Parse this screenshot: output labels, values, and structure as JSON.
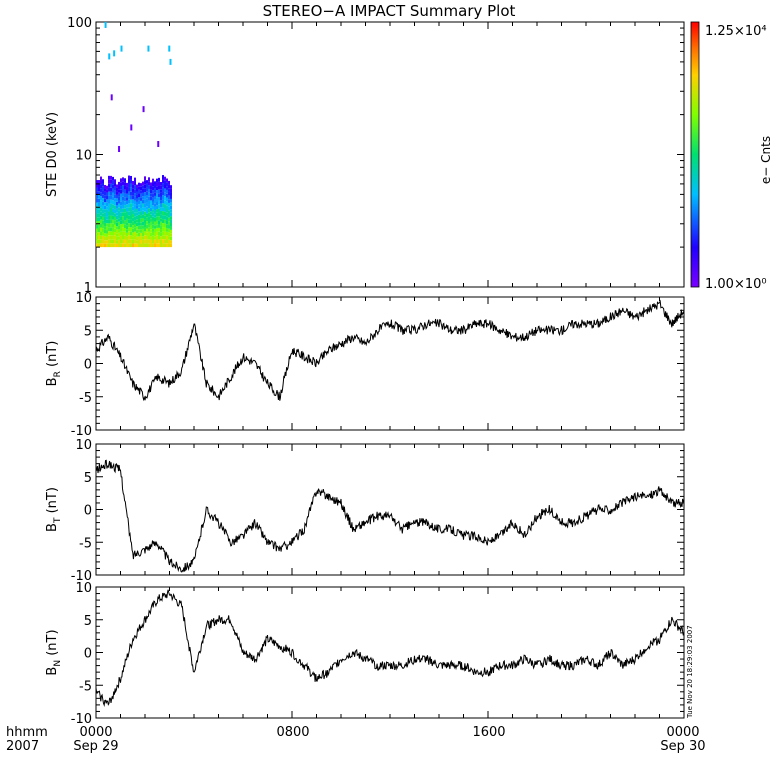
{
  "title": "STEREO−A IMPACT Summary Plot",
  "footer": {
    "left_top": "hhmm",
    "left_bottom": "2007",
    "x_ticks": [
      "0000",
      "0800",
      "1600",
      "0000"
    ],
    "x_dates": [
      "Sep 29",
      "",
      "",
      "Sep 30"
    ]
  },
  "timestamp": "Tue Nov 20 18:29:03 2007",
  "colorbar": {
    "label": "e− Cnts",
    "max_label": "1.25×10⁴",
    "min_label": "1.00×10⁰",
    "min": 1,
    "max": 12500
  },
  "chart_data": [
    {
      "type": "heatmap",
      "ylabel": "STE D0 (keV)",
      "yscale": "log",
      "ylim": [
        1,
        100
      ],
      "yticks": [
        "1",
        "10",
        "100"
      ],
      "xlim_hours": [
        0,
        24
      ],
      "data_extent_hours": [
        0,
        3.1
      ],
      "energy_band_keV": [
        2,
        7
      ],
      "sparse_points": [
        {
          "t": 0.35,
          "e": 95
        },
        {
          "t": 0.5,
          "e": 55
        },
        {
          "t": 0.7,
          "e": 58
        },
        {
          "t": 1.0,
          "e": 63
        },
        {
          "t": 2.1,
          "e": 63
        },
        {
          "t": 2.95,
          "e": 63
        },
        {
          "t": 3.0,
          "e": 50
        },
        {
          "t": 0.6,
          "e": 27
        },
        {
          "t": 1.9,
          "e": 22
        },
        {
          "t": 1.4,
          "e": 16
        },
        {
          "t": 2.5,
          "e": 12
        },
        {
          "t": 0.9,
          "e": 11
        }
      ]
    },
    {
      "type": "line",
      "ylabel": "B",
      "ylabel_sub": "R",
      "ylabel_unit": "(nT)",
      "ylim": [
        -10,
        10
      ],
      "yticks": [
        "-10",
        "-5",
        "0",
        "5",
        "10"
      ],
      "x_hours": [
        0,
        0.5,
        1,
        1.5,
        2,
        2.5,
        3,
        3.5,
        4,
        4.5,
        5,
        5.5,
        6,
        6.5,
        7,
        7.5,
        8,
        8.5,
        9,
        9.5,
        10,
        10.5,
        11,
        11.5,
        12,
        12.5,
        13,
        13.5,
        14,
        14.5,
        15,
        15.5,
        16,
        16.5,
        17,
        17.5,
        18,
        18.5,
        19,
        19.5,
        20,
        20.5,
        21,
        21.5,
        22,
        22.5,
        23,
        23.5,
        24
      ],
      "values": [
        2,
        4,
        1,
        -3,
        -5,
        -2,
        -3,
        -1,
        6,
        -3,
        -5,
        -2,
        1,
        0,
        -3,
        -5,
        2,
        1,
        0,
        2,
        3,
        4,
        3,
        5,
        6,
        5,
        5,
        6,
        6,
        5,
        5,
        6,
        6,
        5,
        4,
        4,
        5,
        5,
        5,
        6,
        6,
        6,
        7,
        8,
        7,
        8,
        9,
        6,
        8
      ]
    },
    {
      "type": "line",
      "ylabel": "B",
      "ylabel_sub": "T",
      "ylabel_unit": "(nT)",
      "ylim": [
        -10,
        10
      ],
      "yticks": [
        "-10",
        "-5",
        "0",
        "5",
        "10"
      ],
      "x_hours": [
        0,
        0.5,
        1,
        1.5,
        2,
        2.5,
        3,
        3.5,
        4,
        4.5,
        5,
        5.5,
        6,
        6.5,
        7,
        7.5,
        8,
        8.5,
        9,
        9.5,
        10,
        10.5,
        11,
        11.5,
        12,
        12.5,
        13,
        13.5,
        14,
        14.5,
        15,
        15.5,
        16,
        16.5,
        17,
        17.5,
        18,
        18.5,
        19,
        19.5,
        20,
        20.5,
        21,
        21.5,
        22,
        22.5,
        23,
        23.5,
        24
      ],
      "values": [
        6,
        7,
        6,
        -7,
        -6,
        -5,
        -8,
        -9,
        -8,
        0,
        -2,
        -5,
        -4,
        -2,
        -5,
        -6,
        -5,
        -3,
        3,
        2,
        1,
        -3,
        -2,
        -1,
        -1,
        -3,
        -2,
        -2,
        -3,
        -3,
        -4,
        -4,
        -5,
        -4,
        -2,
        -4,
        -1,
        0,
        -2,
        -2,
        -1,
        0,
        0,
        1,
        2,
        2,
        3,
        1,
        1
      ]
    },
    {
      "type": "line",
      "ylabel": "B",
      "ylabel_sub": "N",
      "ylabel_unit": "(nT)",
      "ylim": [
        -10,
        10
      ],
      "yticks": [
        "-10",
        "-5",
        "0",
        "5",
        "10"
      ],
      "x_hours": [
        0,
        0.5,
        1,
        1.5,
        2,
        2.5,
        3,
        3.5,
        4,
        4.5,
        5,
        5.5,
        6,
        6.5,
        7,
        7.5,
        8,
        8.5,
        9,
        9.5,
        10,
        10.5,
        11,
        11.5,
        12,
        12.5,
        13,
        13.5,
        14,
        14.5,
        15,
        15.5,
        16,
        16.5,
        17,
        17.5,
        18,
        18.5,
        19,
        19.5,
        20,
        20.5,
        21,
        21.5,
        22,
        22.5,
        23,
        23.5,
        24
      ],
      "values": [
        -6,
        -8,
        -4,
        2,
        5,
        8,
        9,
        7,
        -3,
        4,
        5,
        5,
        0,
        -1,
        2,
        1,
        0,
        -2,
        -4,
        -3,
        -1,
        0,
        -1,
        -2,
        -2,
        -2,
        -1,
        -1,
        -2,
        -2,
        -2,
        -3,
        -3,
        -2,
        -2,
        -1,
        -2,
        -1,
        -2,
        -2,
        -1,
        -2,
        0,
        -2,
        -1,
        1,
        2,
        5,
        3
      ]
    }
  ]
}
